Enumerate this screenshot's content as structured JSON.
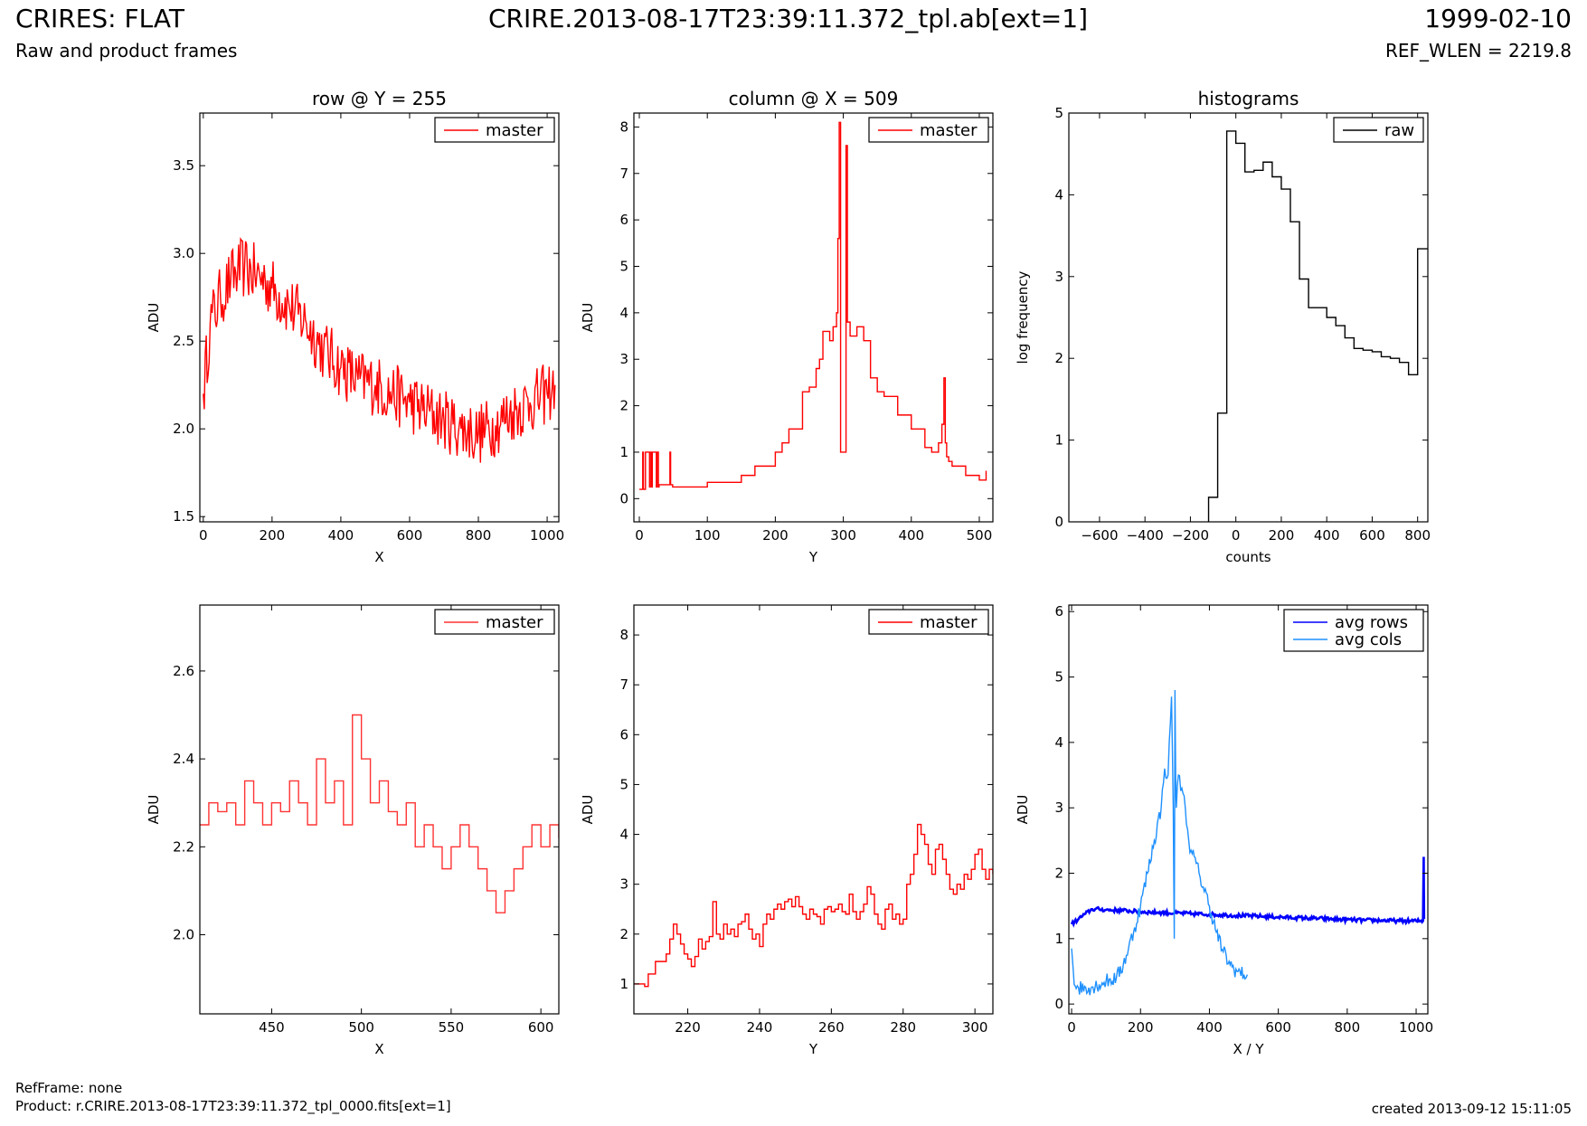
{
  "header": {
    "title_left": "CRIRES: FLAT",
    "subtitle_left": "Raw and product frames",
    "title_center": "CRIRE.2013-08-17T23:39:11.372_tpl.ab[ext=1]",
    "title_right": "1999-02-10",
    "subtitle_right": "REF_WLEN = 2219.8"
  },
  "footer": {
    "refframe": "RefFrame: none",
    "product": "Product: r.CRIRE.2013-08-17T23:39:11.372_tpl_0000.fits[ext=1]",
    "created": "created 2013-09-12 15:11:05"
  },
  "colors": {
    "master": "#ff0000",
    "master_zoom": "#ff3333",
    "raw": "#000000",
    "avg_rows": "#0000ff",
    "avg_cols": "#1e90ff"
  },
  "chart_data": [
    {
      "type": "line",
      "title": "row @ Y = 255",
      "xlabel": "X",
      "ylabel": "ADU",
      "xlim": [
        -10,
        1034
      ],
      "ylim": [
        1.47,
        3.8
      ],
      "xticks": [
        0,
        200,
        400,
        600,
        800,
        1000
      ],
      "yticks": [
        1.5,
        2.0,
        2.5,
        3.0,
        3.5
      ],
      "ytick_labels": [
        "1.5",
        "2.0",
        "2.5",
        "3.0",
        "3.5"
      ],
      "legend": "top-right",
      "series": [
        {
          "name": "master",
          "color": "#ff0000",
          "kind": "line",
          "x": [
            0,
            20,
            50,
            80,
            100,
            120,
            150,
            180,
            200,
            250,
            300,
            350,
            400,
            450,
            500,
            550,
            600,
            650,
            700,
            750,
            780,
            800,
            850,
            900,
            950,
            1000,
            1023
          ],
          "y": [
            2.2,
            2.6,
            2.75,
            2.85,
            2.9,
            2.92,
            2.88,
            2.85,
            2.8,
            2.7,
            2.6,
            2.45,
            2.35,
            2.28,
            2.25,
            2.2,
            2.15,
            2.1,
            2.05,
            2.0,
            1.98,
            1.97,
            2.02,
            2.1,
            2.15,
            2.2,
            2.25
          ]
        }
      ]
    },
    {
      "type": "line",
      "title": "column @ X = 509",
      "xlabel": "Y",
      "ylabel": "ADU",
      "xlim": [
        -8,
        520
      ],
      "ylim": [
        -0.5,
        8.3
      ],
      "xticks": [
        0,
        100,
        200,
        300,
        400,
        500
      ],
      "yticks": [
        0,
        1,
        2,
        3,
        4,
        5,
        6,
        7,
        8
      ],
      "legend": "top-right",
      "series": [
        {
          "name": "master",
          "color": "#ff0000",
          "kind": "step",
          "x": [
            0,
            5,
            6,
            8,
            9,
            15,
            16,
            18,
            19,
            25,
            26,
            28,
            29,
            45,
            46,
            48,
            49,
            60,
            100,
            150,
            170,
            200,
            210,
            220,
            240,
            250,
            260,
            265,
            270,
            280,
            285,
            290,
            292,
            294,
            296,
            297,
            298,
            300,
            302,
            304,
            306,
            310,
            320,
            330,
            340,
            350,
            360,
            380,
            400,
            420,
            430,
            440,
            445,
            448,
            450,
            452,
            455,
            460,
            480,
            500,
            510
          ],
          "y": [
            0.2,
            1.0,
            0.2,
            0.2,
            1.0,
            0.25,
            1.0,
            0.25,
            1.0,
            0.25,
            1.0,
            0.25,
            0.3,
            1.0,
            0.3,
            0.3,
            0.25,
            0.25,
            0.35,
            0.5,
            0.7,
            1.0,
            1.2,
            1.5,
            2.3,
            2.4,
            2.8,
            3.0,
            3.6,
            3.4,
            3.7,
            4.0,
            5.6,
            8.1,
            1.0,
            1.0,
            1.0,
            1.0,
            1.0,
            7.6,
            3.8,
            3.5,
            3.7,
            3.4,
            2.6,
            2.3,
            2.2,
            1.8,
            1.5,
            1.1,
            1.0,
            1.2,
            1.6,
            2.6,
            1.2,
            0.9,
            0.8,
            0.7,
            0.5,
            0.4,
            0.6
          ]
        }
      ]
    },
    {
      "type": "line",
      "title": "histograms",
      "xlabel": "counts",
      "ylabel": "log frequency",
      "xlim": [
        -735,
        845
      ],
      "ylim": [
        0,
        5
      ],
      "xticks": [
        -600,
        -400,
        -200,
        0,
        200,
        400,
        600,
        800
      ],
      "xtick_labels": [
        "−600",
        "−400",
        "−200",
        "0",
        "200",
        "400",
        "600",
        "800"
      ],
      "yticks": [
        0,
        1,
        2,
        3,
        4,
        5
      ],
      "legend": "top-right",
      "series": [
        {
          "name": "raw",
          "color": "#000000",
          "kind": "step",
          "x": [
            -120,
            -120,
            -80,
            -40,
            0,
            40,
            80,
            120,
            160,
            200,
            240,
            280,
            320,
            360,
            400,
            440,
            480,
            520,
            560,
            600,
            640,
            680,
            720,
            760,
            800,
            845
          ],
          "y": [
            0,
            0.3,
            1.33,
            4.78,
            4.63,
            4.28,
            4.3,
            4.4,
            4.22,
            4.07,
            3.67,
            2.97,
            2.62,
            2.62,
            2.5,
            2.4,
            2.25,
            2.12,
            2.1,
            2.08,
            2.02,
            2.0,
            1.95,
            1.8,
            3.34,
            3.34
          ]
        }
      ]
    },
    {
      "type": "line",
      "xlabel": "X",
      "ylabel": "ADU",
      "xlim": [
        410,
        610
      ],
      "ylim": [
        1.82,
        2.75
      ],
      "xticks": [
        450,
        500,
        550,
        600
      ],
      "yticks": [
        2.0,
        2.2,
        2.4,
        2.6
      ],
      "ytick_labels": [
        "2.0",
        "2.2",
        "2.4",
        "2.6"
      ],
      "legend": "top-right",
      "series": [
        {
          "name": "master",
          "color": "#ff3333",
          "kind": "step",
          "x": [
            410,
            415,
            420,
            425,
            430,
            435,
            440,
            445,
            450,
            455,
            460,
            465,
            470,
            475,
            480,
            485,
            490,
            495,
            500,
            505,
            510,
            515,
            520,
            525,
            530,
            535,
            540,
            545,
            550,
            555,
            560,
            565,
            570,
            575,
            580,
            585,
            590,
            595,
            600,
            605,
            610
          ],
          "y": [
            2.25,
            2.3,
            2.28,
            2.3,
            2.25,
            2.35,
            2.3,
            2.25,
            2.3,
            2.28,
            2.35,
            2.3,
            2.25,
            2.4,
            2.3,
            2.35,
            2.25,
            2.5,
            2.4,
            2.3,
            2.35,
            2.28,
            2.25,
            2.3,
            2.2,
            2.25,
            2.2,
            2.15,
            2.2,
            2.25,
            2.2,
            2.15,
            2.1,
            2.05,
            2.1,
            2.15,
            2.2,
            2.25,
            2.2,
            2.25,
            2.22
          ]
        }
      ]
    },
    {
      "type": "line",
      "xlabel": "Y",
      "ylabel": "ADU",
      "xlim": [
        205,
        305
      ],
      "ylim": [
        0.4,
        8.6
      ],
      "xticks": [
        220,
        240,
        260,
        280,
        300
      ],
      "yticks": [
        1,
        2,
        3,
        4,
        5,
        6,
        7,
        8
      ],
      "legend": "top-right",
      "series": [
        {
          "name": "master",
          "color": "#ff0000",
          "kind": "step",
          "x": [
            205,
            208,
            209,
            211,
            213,
            214,
            215,
            216,
            217,
            218,
            219,
            220,
            221,
            222,
            223,
            224,
            225,
            226,
            227,
            228,
            229,
            230,
            231,
            232,
            233,
            234,
            235,
            236,
            237,
            238,
            239,
            240,
            241,
            242,
            243,
            244,
            245,
            246,
            247,
            248,
            249,
            250,
            251,
            252,
            253,
            254,
            255,
            256,
            257,
            258,
            259,
            260,
            261,
            262,
            263,
            264,
            265,
            266,
            267,
            268,
            269,
            270,
            271,
            272,
            273,
            274,
            275,
            276,
            277,
            278,
            279,
            280,
            281,
            282,
            283,
            284,
            285,
            286,
            287,
            288,
            289,
            290,
            291,
            292,
            293,
            294,
            295,
            296,
            297,
            298,
            299,
            300,
            301,
            302,
            303,
            304,
            305
          ],
          "y": [
            1.0,
            0.95,
            1.2,
            1.45,
            1.45,
            1.6,
            1.9,
            2.2,
            2.0,
            1.8,
            1.6,
            1.5,
            1.35,
            1.55,
            1.9,
            1.7,
            1.85,
            1.95,
            2.65,
            2.0,
            1.9,
            2.2,
            2.0,
            2.1,
            1.95,
            2.2,
            2.25,
            2.4,
            2.1,
            1.9,
            2.0,
            1.75,
            2.2,
            2.4,
            2.3,
            2.5,
            2.6,
            2.5,
            2.65,
            2.7,
            2.55,
            2.75,
            2.55,
            2.4,
            2.3,
            2.5,
            2.4,
            2.35,
            2.2,
            2.5,
            2.55,
            2.45,
            2.5,
            2.6,
            2.45,
            2.4,
            2.8,
            2.45,
            2.3,
            2.45,
            2.6,
            2.95,
            2.8,
            2.4,
            2.2,
            2.1,
            2.5,
            2.6,
            2.3,
            2.4,
            2.2,
            2.3,
            3.0,
            3.2,
            3.6,
            4.2,
            4.0,
            3.8,
            3.4,
            3.2,
            3.7,
            3.8,
            3.5,
            3.2,
            2.9,
            2.8,
            3.0,
            2.9,
            3.2,
            3.1,
            3.3,
            3.6,
            3.7,
            3.3,
            3.1,
            3.3,
            3.2
          ]
        }
      ]
    },
    {
      "type": "line",
      "xlabel": "X / Y",
      "ylabel": "ADU",
      "xlim": [
        -8,
        1034
      ],
      "ylim": [
        -0.15,
        6.1
      ],
      "xticks": [
        0,
        200,
        400,
        600,
        800,
        1000
      ],
      "yticks": [
        0,
        1,
        2,
        3,
        4,
        5,
        6
      ],
      "legend": "top-right",
      "series": [
        {
          "name": "avg rows",
          "color": "#0000ff",
          "kind": "line",
          "x": [
            0,
            20,
            40,
            60,
            80,
            100,
            150,
            200,
            250,
            300,
            350,
            400,
            450,
            500,
            550,
            600,
            650,
            700,
            750,
            800,
            850,
            900,
            950,
            1000,
            1020,
            1022,
            1023
          ],
          "y": [
            1.22,
            1.3,
            1.38,
            1.45,
            1.45,
            1.44,
            1.43,
            1.41,
            1.4,
            1.39,
            1.38,
            1.37,
            1.36,
            1.35,
            1.34,
            1.33,
            1.32,
            1.31,
            1.3,
            1.29,
            1.28,
            1.28,
            1.27,
            1.27,
            1.27,
            2.25,
            1.3
          ]
        },
        {
          "name": "avg cols",
          "color": "#1e90ff",
          "kind": "line",
          "x": [
            0,
            5,
            10,
            20,
            50,
            80,
            100,
            130,
            150,
            180,
            200,
            220,
            240,
            260,
            270,
            280,
            290,
            295,
            298,
            300,
            302,
            304,
            310,
            320,
            330,
            340,
            350,
            370,
            400,
            420,
            440,
            460,
            480,
            500,
            510
          ],
          "y": [
            0.85,
            0.5,
            0.28,
            0.25,
            0.25,
            0.3,
            0.35,
            0.4,
            0.6,
            1.1,
            1.5,
            2.0,
            2.5,
            3.0,
            3.6,
            3.5,
            4.7,
            3.0,
            1.0,
            4.8,
            3.5,
            3.0,
            3.5,
            3.3,
            3.0,
            2.5,
            2.3,
            2.0,
            1.5,
            1.1,
            0.8,
            0.6,
            0.5,
            0.45,
            0.45
          ]
        }
      ]
    }
  ]
}
